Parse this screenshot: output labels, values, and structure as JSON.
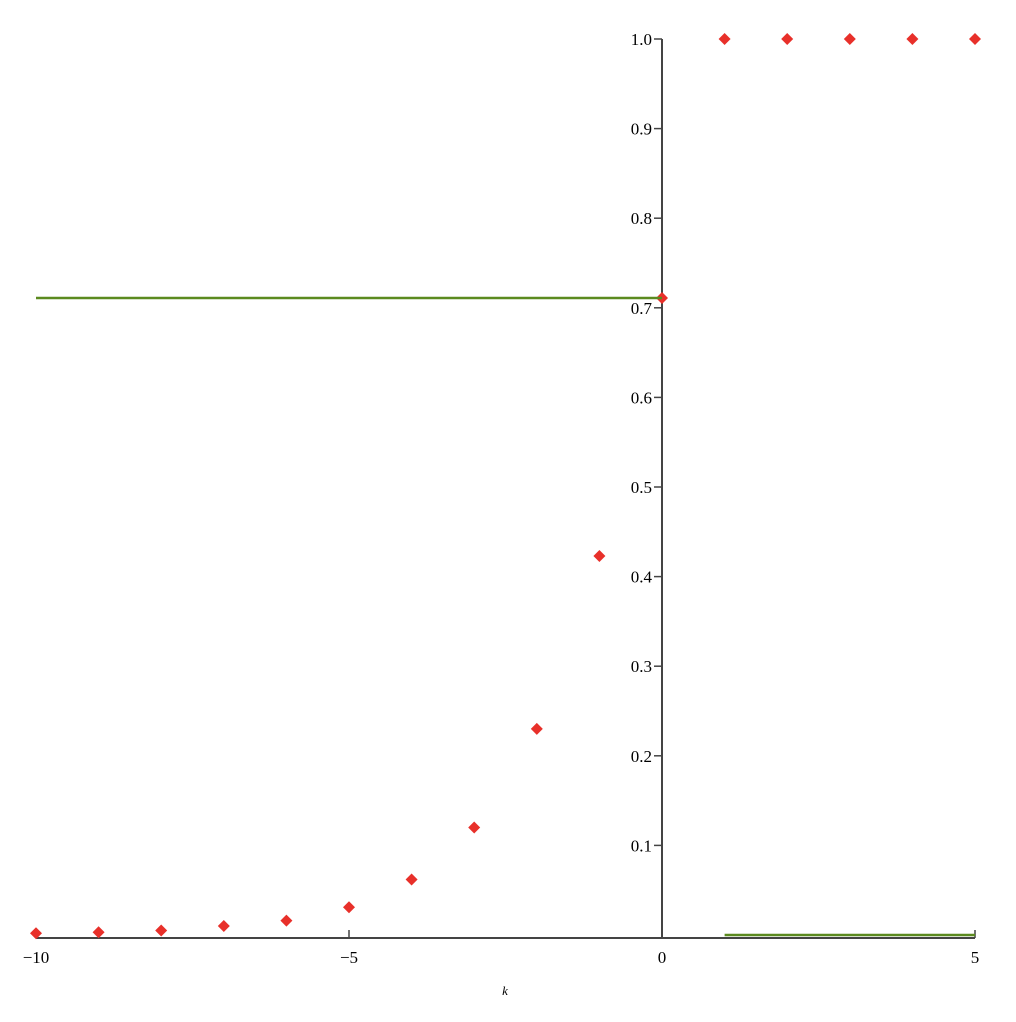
{
  "chart_data": {
    "type": "scatter",
    "x_label": "k",
    "xlim": [
      -10,
      5
    ],
    "ylim": [
      0,
      1
    ],
    "xticks": [
      {
        "value": -10,
        "label": "−10"
      },
      {
        "value": -5,
        "label": "−5"
      },
      0,
      5
    ],
    "yticks": [
      0.1,
      0.2,
      0.3,
      0.4,
      0.5,
      0.6,
      0.7,
      0.8,
      0.9,
      {
        "value": 1,
        "label": "1.0"
      }
    ],
    "series": [
      {
        "style": "points",
        "color": "#e8302a",
        "x": [
          -10,
          -9,
          -8,
          -7,
          -6,
          -5,
          -4,
          -3,
          -2,
          -1,
          0,
          1,
          2,
          3,
          4,
          5
        ],
        "values": [
          0.002,
          0.003,
          0.005,
          0.01,
          0.016,
          0.031,
          0.062,
          0.12,
          0.23,
          0.423,
          0.711,
          1,
          1,
          1,
          1,
          1
        ]
      },
      {
        "style": "line",
        "color": "#5b8a1f",
        "x": [
          -10,
          0
        ],
        "values": [
          0.711,
          0.711
        ]
      },
      {
        "style": "line",
        "color": "#5b8a1f",
        "x": [
          1,
          5
        ],
        "values": [
          0,
          0
        ]
      }
    ]
  }
}
